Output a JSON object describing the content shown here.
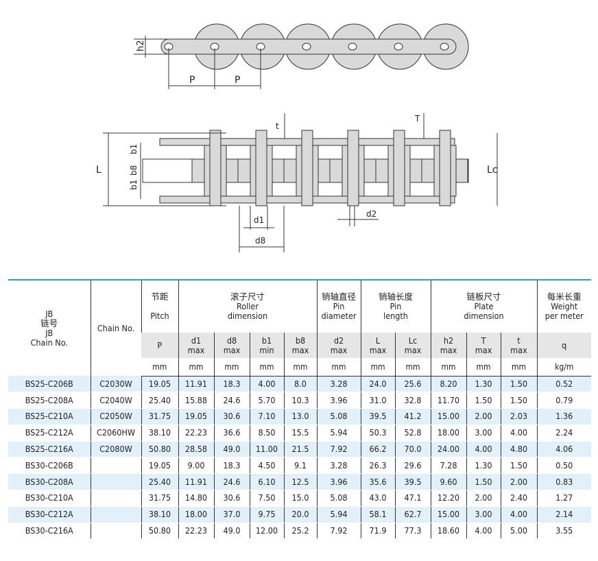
{
  "diagram_labels": {
    "h2": "h2",
    "P": "P",
    "t": "t",
    "T": "T",
    "L": "L",
    "Lc": "Lc",
    "b1": "b1",
    "b8": "b8",
    "d1": "d1",
    "d8": "d8",
    "d2": "d2"
  },
  "table": {
    "col_jb": [
      "JB",
      "链号",
      "JB",
      "Chain No."
    ],
    "col_chain": "Chain No.",
    "groups": [
      {
        "cn": "节距",
        "en": [
          "Pitch"
        ]
      },
      {
        "cn": "滚子尺寸",
        "en": [
          "Roller",
          "dimension"
        ]
      },
      {
        "cn": "销轴直径",
        "en": [
          "Pin",
          "diameter"
        ]
      },
      {
        "cn": "销轴长度",
        "en": [
          "Pin",
          "length"
        ]
      },
      {
        "cn": "链板尺寸",
        "en": [
          "Plate",
          "dimension"
        ]
      },
      {
        "cn": "每米长重",
        "en": [
          "Weight",
          "per meter"
        ]
      }
    ],
    "symbols": [
      [
        "P",
        ""
      ],
      [
        "d1",
        "max"
      ],
      [
        "d8",
        "max"
      ],
      [
        "b1",
        "min"
      ],
      [
        "b8",
        "max"
      ],
      [
        "d2",
        "max"
      ],
      [
        "L",
        "max"
      ],
      [
        "Lc",
        "max"
      ],
      [
        "h2",
        "max"
      ],
      [
        "T",
        "max"
      ],
      [
        "t",
        "max"
      ],
      [
        "q",
        ""
      ]
    ],
    "units": [
      "mm",
      "mm",
      "mm",
      "mm",
      "mm",
      "mm",
      "mm",
      "mm",
      "mm",
      "mm",
      "mm",
      "kg/m"
    ],
    "rows": [
      [
        "BS25-C206B",
        "C2030W",
        "19.05",
        "11.91",
        "18.3",
        "4.00",
        "8.0",
        "3.28",
        "24.0",
        "25.6",
        "8.20",
        "1.30",
        "1.50",
        "0.52"
      ],
      [
        "BS25-C208A",
        "C2040W",
        "25.40",
        "15.88",
        "24.6",
        "5.70",
        "10.3",
        "3.96",
        "31.0",
        "32.8",
        "11.70",
        "1.50",
        "1.50",
        "0.79"
      ],
      [
        "BS25-C210A",
        "C2050W",
        "31.75",
        "19.05",
        "30.6",
        "7.10",
        "13.0",
        "5.08",
        "39.5",
        "41.2",
        "15.00",
        "2.00",
        "2.03",
        "1.36"
      ],
      [
        "BS25-C212A",
        "C2060HW",
        "38.10",
        "22.23",
        "36.6",
        "8.50",
        "15.5",
        "5.94",
        "50.3",
        "52.8",
        "18.00",
        "3.00",
        "4.00",
        "2.24"
      ],
      [
        "BS25-C216A",
        "C2080W",
        "50.80",
        "28.58",
        "49.0",
        "11.00",
        "21.5",
        "7.92",
        "66.2",
        "70.0",
        "24.00",
        "4.00",
        "4.80",
        "4.06"
      ],
      [
        "BS30-C206B",
        "",
        "19.05",
        "9.00",
        "18.3",
        "4.50",
        "9.1",
        "3.28",
        "26.3",
        "29.6",
        "7.28",
        "1.30",
        "1.50",
        "0.50"
      ],
      [
        "BS30-C208A",
        "",
        "25.40",
        "11.91",
        "24.6",
        "6.10",
        "12.5",
        "3.96",
        "35.6",
        "39.5",
        "9.60",
        "1.50",
        "2.00",
        "0.83"
      ],
      [
        "BS30-C210A",
        "",
        "31.75",
        "14.80",
        "30.6",
        "7.50",
        "15.0",
        "5.08",
        "43.0",
        "47.1",
        "12.20",
        "2.00",
        "2.40",
        "1.27"
      ],
      [
        "BS30-C212A",
        "",
        "38.10",
        "18.00",
        "37.0",
        "9.75",
        "20.0",
        "5.94",
        "58.1",
        "62.7",
        "15.00",
        "3.00",
        "4.00",
        "2.14"
      ],
      [
        "BS30-C216A",
        "",
        "50.80",
        "22.23",
        "49.0",
        "12.00",
        "25.2",
        "7.92",
        "71.9",
        "77.3",
        "18.60",
        "4.00",
        "5.00",
        "3.55"
      ]
    ]
  }
}
